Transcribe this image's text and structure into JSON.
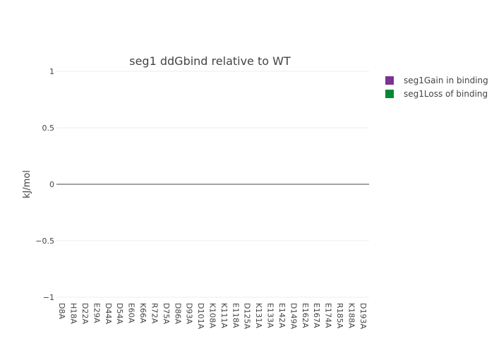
{
  "chart_data": {
    "type": "bar",
    "title": "seg1 ddGbind relative to WT",
    "xlabel": "",
    "ylabel": "kJ/mol",
    "ylim": [
      -1,
      1
    ],
    "yticks": [
      1,
      0.5,
      0,
      -0.5,
      -1
    ],
    "ytick_labels": [
      "1",
      "0.5",
      "0",
      "−0.5",
      "−1"
    ],
    "grid": true,
    "legend_position": "top-right",
    "categories": [
      "D8A",
      "H18A",
      "D22A",
      "E29A",
      "D44A",
      "D54A",
      "E60A",
      "K66A",
      "R72A",
      "D75A",
      "D86A",
      "D93A",
      "D101A",
      "K108A",
      "K111A",
      "E118A",
      "D125A",
      "K131A",
      "E133A",
      "E142A",
      "D149A",
      "E162A",
      "E167A",
      "E174A",
      "R185A",
      "K188A",
      "D193A"
    ],
    "series": [
      {
        "name": "seg1Gain in binding",
        "color": "#7b3294",
        "values": [
          0,
          0,
          0,
          0,
          0,
          0,
          0,
          0,
          0,
          0,
          0,
          0,
          0,
          0,
          0,
          0,
          0,
          0,
          0,
          0,
          0,
          0,
          0,
          0,
          0,
          0,
          0
        ]
      },
      {
        "name": "seg1Loss of binding",
        "color": "#008837",
        "values": [
          0,
          0,
          0,
          0,
          0,
          0,
          0,
          0,
          0,
          0,
          0,
          0,
          0,
          0,
          0,
          0,
          0,
          0,
          0,
          0,
          0,
          0,
          0,
          0,
          0,
          0,
          0
        ]
      }
    ]
  }
}
